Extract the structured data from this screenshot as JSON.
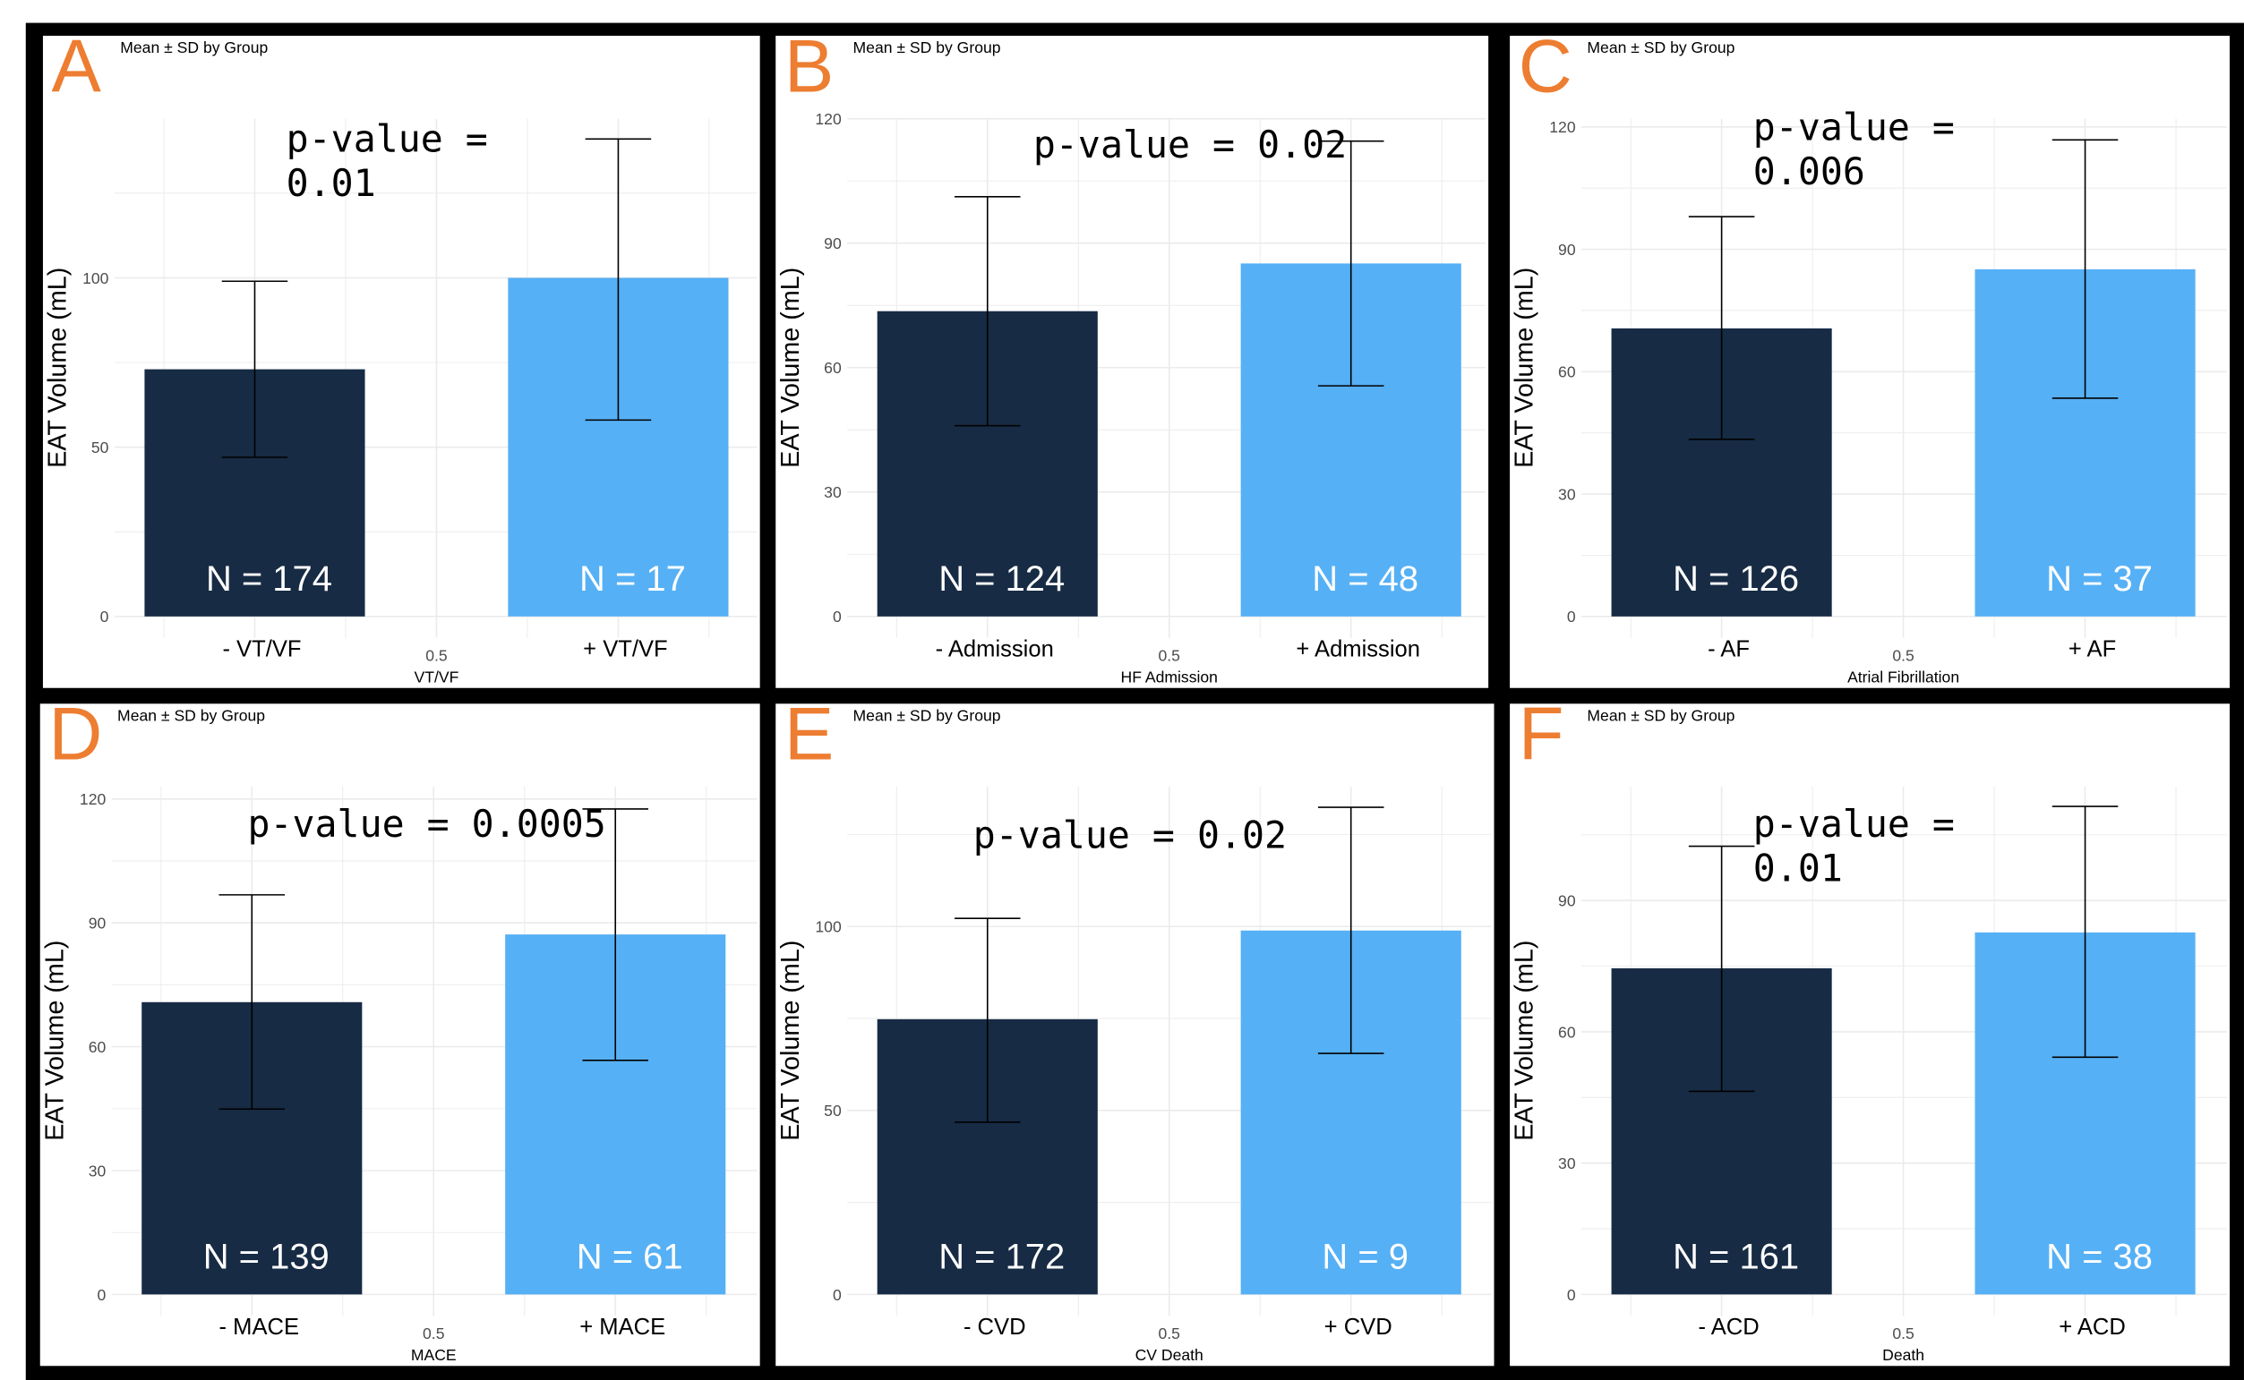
{
  "colors": {
    "negative_bar": "#172B44",
    "positive_bar": "#56B0F5",
    "panel_letter": "#ED7D31",
    "grid": "#EBEBEB"
  },
  "chart_data": [
    {
      "type": "bar",
      "panel": "A",
      "title": "Mean ± SD by Group",
      "ylabel": "EAT Volume (mL)",
      "xlabel": "VT/VF",
      "x_tick": "0.5",
      "ylim": [
        0,
        147
      ],
      "yticks": [
        0,
        50,
        100
      ],
      "categories": [
        "- VT/VF",
        "+ VT/VF"
      ],
      "values": [
        73,
        100
      ],
      "error_upper": [
        99,
        141
      ],
      "error_lower": [
        47,
        58
      ],
      "n_labels": [
        "N = 174",
        "N = 17"
      ],
      "pvalue_text": "p-value =\n0.01"
    },
    {
      "type": "bar",
      "panel": "B",
      "title": "Mean ± SD by Group",
      "ylabel": "EAT Volume (mL)",
      "xlabel": "HF Admission",
      "x_tick": "0.5",
      "ylim": [
        0,
        120
      ],
      "yticks": [
        0,
        30,
        60,
        90,
        120
      ],
      "categories": [
        "- Admission",
        "+ Admission"
      ],
      "values": [
        73.6,
        85.1
      ],
      "error_upper": [
        101.2,
        114.6
      ],
      "error_lower": [
        46,
        55.6
      ],
      "n_labels": [
        "N = 124",
        "N = 48"
      ],
      "pvalue_text": "p-value = 0.02"
    },
    {
      "type": "bar",
      "panel": "C",
      "title": "Mean ± SD by Group",
      "ylabel": "EAT Volume (mL)",
      "xlabel": "Atrial Fibrillation",
      "x_tick": "0.5",
      "ylim": [
        0,
        122
      ],
      "yticks": [
        0,
        30,
        60,
        90,
        120
      ],
      "categories": [
        "- AF",
        "+ AF"
      ],
      "values": [
        70.6,
        85.1
      ],
      "error_upper": [
        98,
        116.8
      ],
      "error_lower": [
        43.4,
        53.5
      ],
      "n_labels": [
        "N = 126",
        "N = 37"
      ],
      "pvalue_text": "p-value =\n0.006"
    },
    {
      "type": "bar",
      "panel": "D",
      "title": "Mean ± SD by Group",
      "ylabel": "EAT Volume (mL)",
      "xlabel": "MACE",
      "x_tick": "0.5",
      "ylim": [
        0,
        123
      ],
      "yticks": [
        0,
        30,
        60,
        90,
        120
      ],
      "categories": [
        "- MACE",
        "+ MACE"
      ],
      "values": [
        70.8,
        87.2
      ],
      "error_upper": [
        96.8,
        117.6
      ],
      "error_lower": [
        44.9,
        56.7
      ],
      "n_labels": [
        "N = 139",
        "N = 61"
      ],
      "pvalue_text": "p-value = 0.0005"
    },
    {
      "type": "bar",
      "panel": "E",
      "title": "Mean ± SD by Group",
      "ylabel": "EAT Volume (mL)",
      "xlabel": "CV Death",
      "x_tick": "0.5",
      "ylim": [
        0,
        138
      ],
      "yticks": [
        0,
        50,
        100
      ],
      "categories": [
        "- CVD",
        "+ CVD"
      ],
      "values": [
        74.8,
        98.9
      ],
      "error_upper": [
        102.2,
        132.4
      ],
      "error_lower": [
        46.8,
        65.5
      ],
      "n_labels": [
        "N = 172",
        "N = 9"
      ],
      "pvalue_text": "p-value = 0.02"
    },
    {
      "type": "bar",
      "panel": "F",
      "title": "Mean ± SD by Group",
      "ylabel": "EAT Volume (mL)",
      "xlabel": "Death",
      "x_tick": "0.5",
      "ylim": [
        0,
        116
      ],
      "yticks": [
        0,
        30,
        60,
        90
      ],
      "categories": [
        "- ACD",
        "+ ACD"
      ],
      "values": [
        74.5,
        82.7
      ],
      "error_upper": [
        102.4,
        111.5
      ],
      "error_lower": [
        46.4,
        54.2
      ],
      "n_labels": [
        "N = 161",
        "N = 38"
      ],
      "pvalue_text": "p-value =\n0.01"
    }
  ]
}
